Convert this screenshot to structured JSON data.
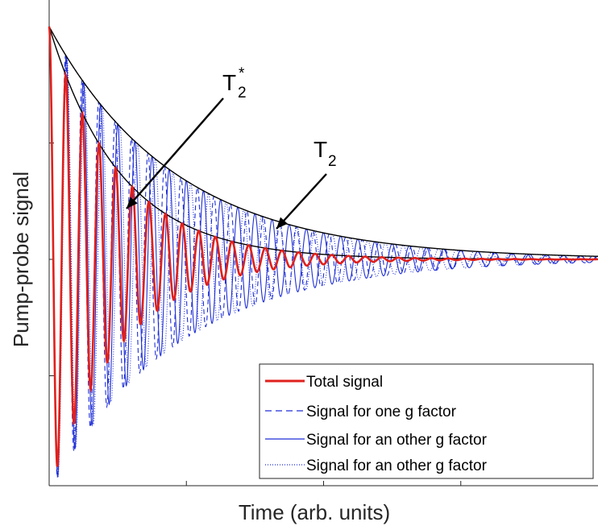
{
  "chart_data": {
    "type": "line",
    "title": "",
    "xlabel": "Time (arb. units)",
    "ylabel": "Pump-probe signal",
    "xlim": [
      0,
      100
    ],
    "ylim": [
      -1,
      1
    ],
    "grid": false,
    "legend_placement": "bottom-right",
    "tick_labels_shown": false,
    "colors": {
      "total": "#e0201c",
      "components": "#1f2fd6",
      "envelope": "#000000"
    },
    "series": [
      {
        "name": "Total signal",
        "style": "solid-thick",
        "color": "#e0201c",
        "frequency": 3.3,
        "decay_time": 13
      },
      {
        "name": "Signal for one g factor",
        "style": "dashed",
        "color": "#1f2fd6",
        "frequency": 3.33,
        "decay_time": 23
      },
      {
        "name": "Signal for an other g factor",
        "style": "solid",
        "color": "#1f2fd6",
        "frequency": 3.2,
        "decay_time": 23
      },
      {
        "name": "Signal for an other g factor",
        "style": "dotted",
        "color": "#1f2fd6",
        "frequency": 3.1,
        "decay_time": 23
      }
    ],
    "envelopes": [
      {
        "label": "T2*",
        "decay_time": 13
      },
      {
        "label": "T2",
        "decay_time": 23
      }
    ],
    "annotations": [
      {
        "text": "T",
        "sub": "2",
        "sup": "*",
        "points_to": {
          "x": 13,
          "y": 0.46
        }
      },
      {
        "text": "T",
        "sub": "2",
        "sup": "",
        "points_to": {
          "x": 41,
          "y": 0.28
        }
      }
    ]
  }
}
